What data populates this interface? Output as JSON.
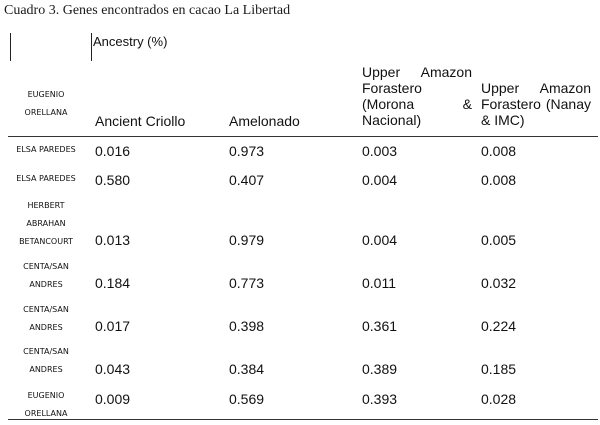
{
  "caption": "Cuadro 3. Genes encontrados en cacao La Libertad",
  "header": {
    "group_label": "Ancestry (%)",
    "corner_label": [
      "EUGENIO",
      "ORELLANA"
    ],
    "columns": [
      "Ancient Criollo",
      "Amelonado",
      "Upper Amazon Forastero (Morona & Nacional)",
      "Upper Amazon Forastero (Nanay & IMC)"
    ]
  },
  "rows": [
    {
      "label": [
        "ELSA PAREDES"
      ],
      "values": [
        "0.016",
        "0.973",
        "0.003",
        "0.008"
      ]
    },
    {
      "label": [
        "ELSA PAREDES"
      ],
      "values": [
        "0.580",
        "0.407",
        "0.004",
        "0.008"
      ]
    },
    {
      "label": [
        "HERBERT",
        "ABRAHAN",
        "BETANCOURT"
      ],
      "values": [
        "0.013",
        "0.979",
        "0.004",
        "0.005"
      ]
    },
    {
      "label": [
        "CENTA/SAN",
        "ANDRES"
      ],
      "values": [
        "0.184",
        "0.773",
        "0.011",
        "0.032"
      ]
    },
    {
      "label": [
        "CENTA/SAN",
        "ANDRES"
      ],
      "values": [
        "0.017",
        "0.398",
        "0.361",
        "0.224"
      ]
    },
    {
      "label": [
        "CENTA/SAN",
        "ANDRES"
      ],
      "values": [
        "0.043",
        "0.384",
        "0.389",
        "0.185"
      ]
    },
    {
      "label": [
        "EUGENIO",
        "ORELLANA"
      ],
      "values": [
        "0.009",
        "0.569",
        "0.393",
        "0.028"
      ]
    }
  ]
}
